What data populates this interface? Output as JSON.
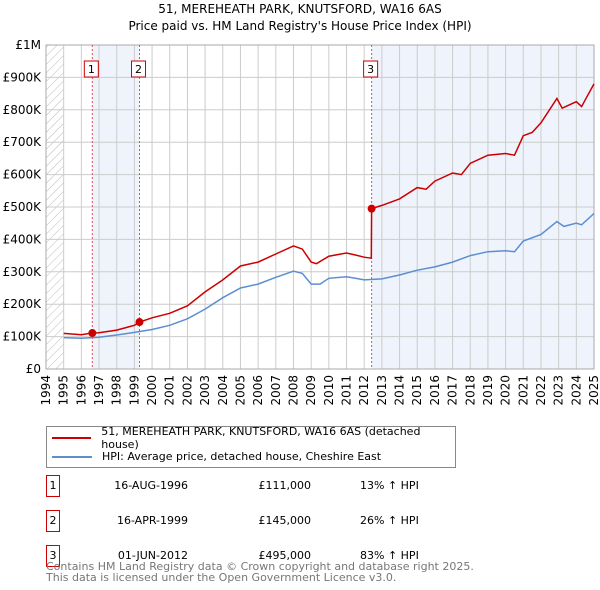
{
  "chart_data": {
    "type": "line",
    "title": "51, MEREHEATH PARK, KNUTSFORD, WA16 6AS",
    "subtitle": "Price paid vs. HM Land Registry's House Price Index (HPI)",
    "xlim": [
      1994,
      2025
    ],
    "ylim": [
      0,
      1000000
    ],
    "yticks": [
      {
        "v": 0,
        "l": "£0"
      },
      {
        "v": 100000,
        "l": "£100K"
      },
      {
        "v": 200000,
        "l": "£200K"
      },
      {
        "v": 300000,
        "l": "£300K"
      },
      {
        "v": 400000,
        "l": "£400K"
      },
      {
        "v": 500000,
        "l": "£500K"
      },
      {
        "v": 600000,
        "l": "£600K"
      },
      {
        "v": 700000,
        "l": "£700K"
      },
      {
        "v": 800000,
        "l": "£800K"
      },
      {
        "v": 900000,
        "l": "£900K"
      },
      {
        "v": 1000000,
        "l": "£1M"
      }
    ],
    "xticks": [
      "1994",
      "1995",
      "1996",
      "1997",
      "1998",
      "1999",
      "2000",
      "2001",
      "2002",
      "2003",
      "2004",
      "2005",
      "2006",
      "2007",
      "2008",
      "2009",
      "2010",
      "2011",
      "2012",
      "2013",
      "2014",
      "2015",
      "2016",
      "2017",
      "2018",
      "2019",
      "2020",
      "2021",
      "2022",
      "2023",
      "2024",
      "2025"
    ],
    "grid": true,
    "series": [
      {
        "name": "51, MEREHEATH PARK, KNUTSFORD, WA16 6AS (detached house)",
        "color": "#cc0000",
        "x": [
          1995,
          1996,
          1996.6,
          1997,
          1998,
          1999,
          1999.3,
          2000,
          2001,
          2002,
          2003,
          2004,
          2005,
          2006,
          2007,
          2008,
          2008.5,
          2009,
          2009.3,
          2010,
          2011,
          2011.5,
          2012,
          2012.4,
          2012.42,
          2013,
          2014,
          2015,
          2015.5,
          2016,
          2017,
          2017.5,
          2018,
          2019,
          2020,
          2020.5,
          2021,
          2021.5,
          2022,
          2022.9,
          2023.2,
          2024,
          2024.3,
          2024.6,
          2025
        ],
        "y": [
          110000,
          106000,
          111000,
          112000,
          120000,
          135000,
          145000,
          158000,
          172000,
          195000,
          238000,
          275000,
          318000,
          330000,
          355000,
          380000,
          370000,
          330000,
          325000,
          348000,
          358000,
          352000,
          345000,
          342000,
          495000,
          505000,
          525000,
          560000,
          555000,
          580000,
          605000,
          600000,
          635000,
          660000,
          665000,
          660000,
          720000,
          730000,
          760000,
          835000,
          805000,
          825000,
          810000,
          840000,
          880000
        ]
      },
      {
        "name": "HPI: Average price, detached house, Cheshire East",
        "color": "#5b8fd0",
        "x": [
          1995,
          1996,
          1997,
          1998,
          1999,
          2000,
          2001,
          2002,
          2003,
          2004,
          2005,
          2006,
          2007,
          2008,
          2008.5,
          2009,
          2009.5,
          2010,
          2011,
          2011.5,
          2012,
          2013,
          2014,
          2015,
          2016,
          2017,
          2018,
          2019,
          2020,
          2020.5,
          2021,
          2022,
          2022.9,
          2023.3,
          2024,
          2024.3,
          2025
        ],
        "y": [
          97000,
          95000,
          98000,
          105000,
          113000,
          122000,
          135000,
          155000,
          185000,
          220000,
          250000,
          262000,
          283000,
          302000,
          295000,
          262000,
          262000,
          280000,
          285000,
          280000,
          275000,
          278000,
          290000,
          305000,
          315000,
          330000,
          350000,
          362000,
          365000,
          362000,
          395000,
          415000,
          455000,
          440000,
          450000,
          445000,
          480000
        ]
      }
    ],
    "sales": [
      {
        "label": "1",
        "x": 1996.62,
        "y": 111000,
        "date": "16-AUG-1996",
        "price": "£111,000",
        "hpi": "13% ↑ HPI"
      },
      {
        "label": "2",
        "x": 1999.29,
        "y": 145000,
        "date": "16-APR-1999",
        "price": "£145,000",
        "hpi": "26% ↑ HPI"
      },
      {
        "label": "3",
        "x": 2012.42,
        "y": 495000,
        "date": "01-JUN-2012",
        "price": "£495,000",
        "hpi": "83% ↑ HPI"
      }
    ]
  },
  "footer": {
    "line1": "Contains HM Land Registry data © Crown copyright and database right 2025.",
    "line2": "This data is licensed under the Open Government Licence v3.0."
  }
}
